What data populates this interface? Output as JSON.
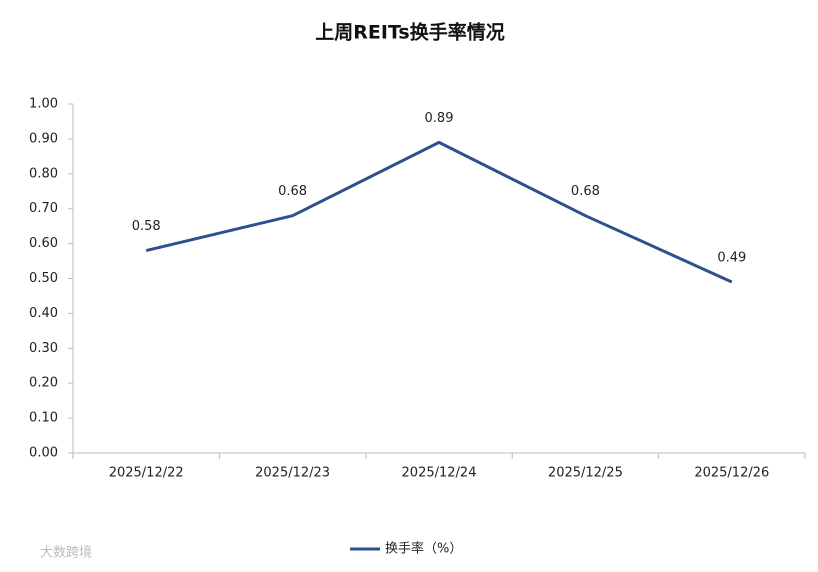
{
  "chart_data": {
    "type": "line",
    "title": "上周REITs换手率情况",
    "categories": [
      "2025/12/22",
      "2025/12/23",
      "2025/12/24",
      "2025/12/25",
      "2025/12/26"
    ],
    "series": [
      {
        "name": "换手率（%）",
        "color": "#2f4f8f",
        "values": [
          0.58,
          0.68,
          0.89,
          0.68,
          0.49
        ]
      }
    ],
    "ylim": [
      0,
      1
    ],
    "yticks": [
      {
        "value": 0,
        "label": "0.00"
      },
      {
        "value": 0.1,
        "label": "0.10"
      },
      {
        "value": 0.2,
        "label": "0.20"
      },
      {
        "value": 0.3,
        "label": "0.30"
      },
      {
        "value": 0.4,
        "label": "0.40"
      },
      {
        "value": 0.5,
        "label": "0.50"
      },
      {
        "value": 0.6,
        "label": "0.60"
      },
      {
        "value": 0.7,
        "label": "0.70"
      },
      {
        "value": 0.8,
        "label": "0.80"
      },
      {
        "value": 0.9,
        "label": "0.90"
      },
      {
        "value": 1,
        "label": "1.00"
      }
    ],
    "legend": "bottom",
    "watermark": "大数跨境"
  }
}
